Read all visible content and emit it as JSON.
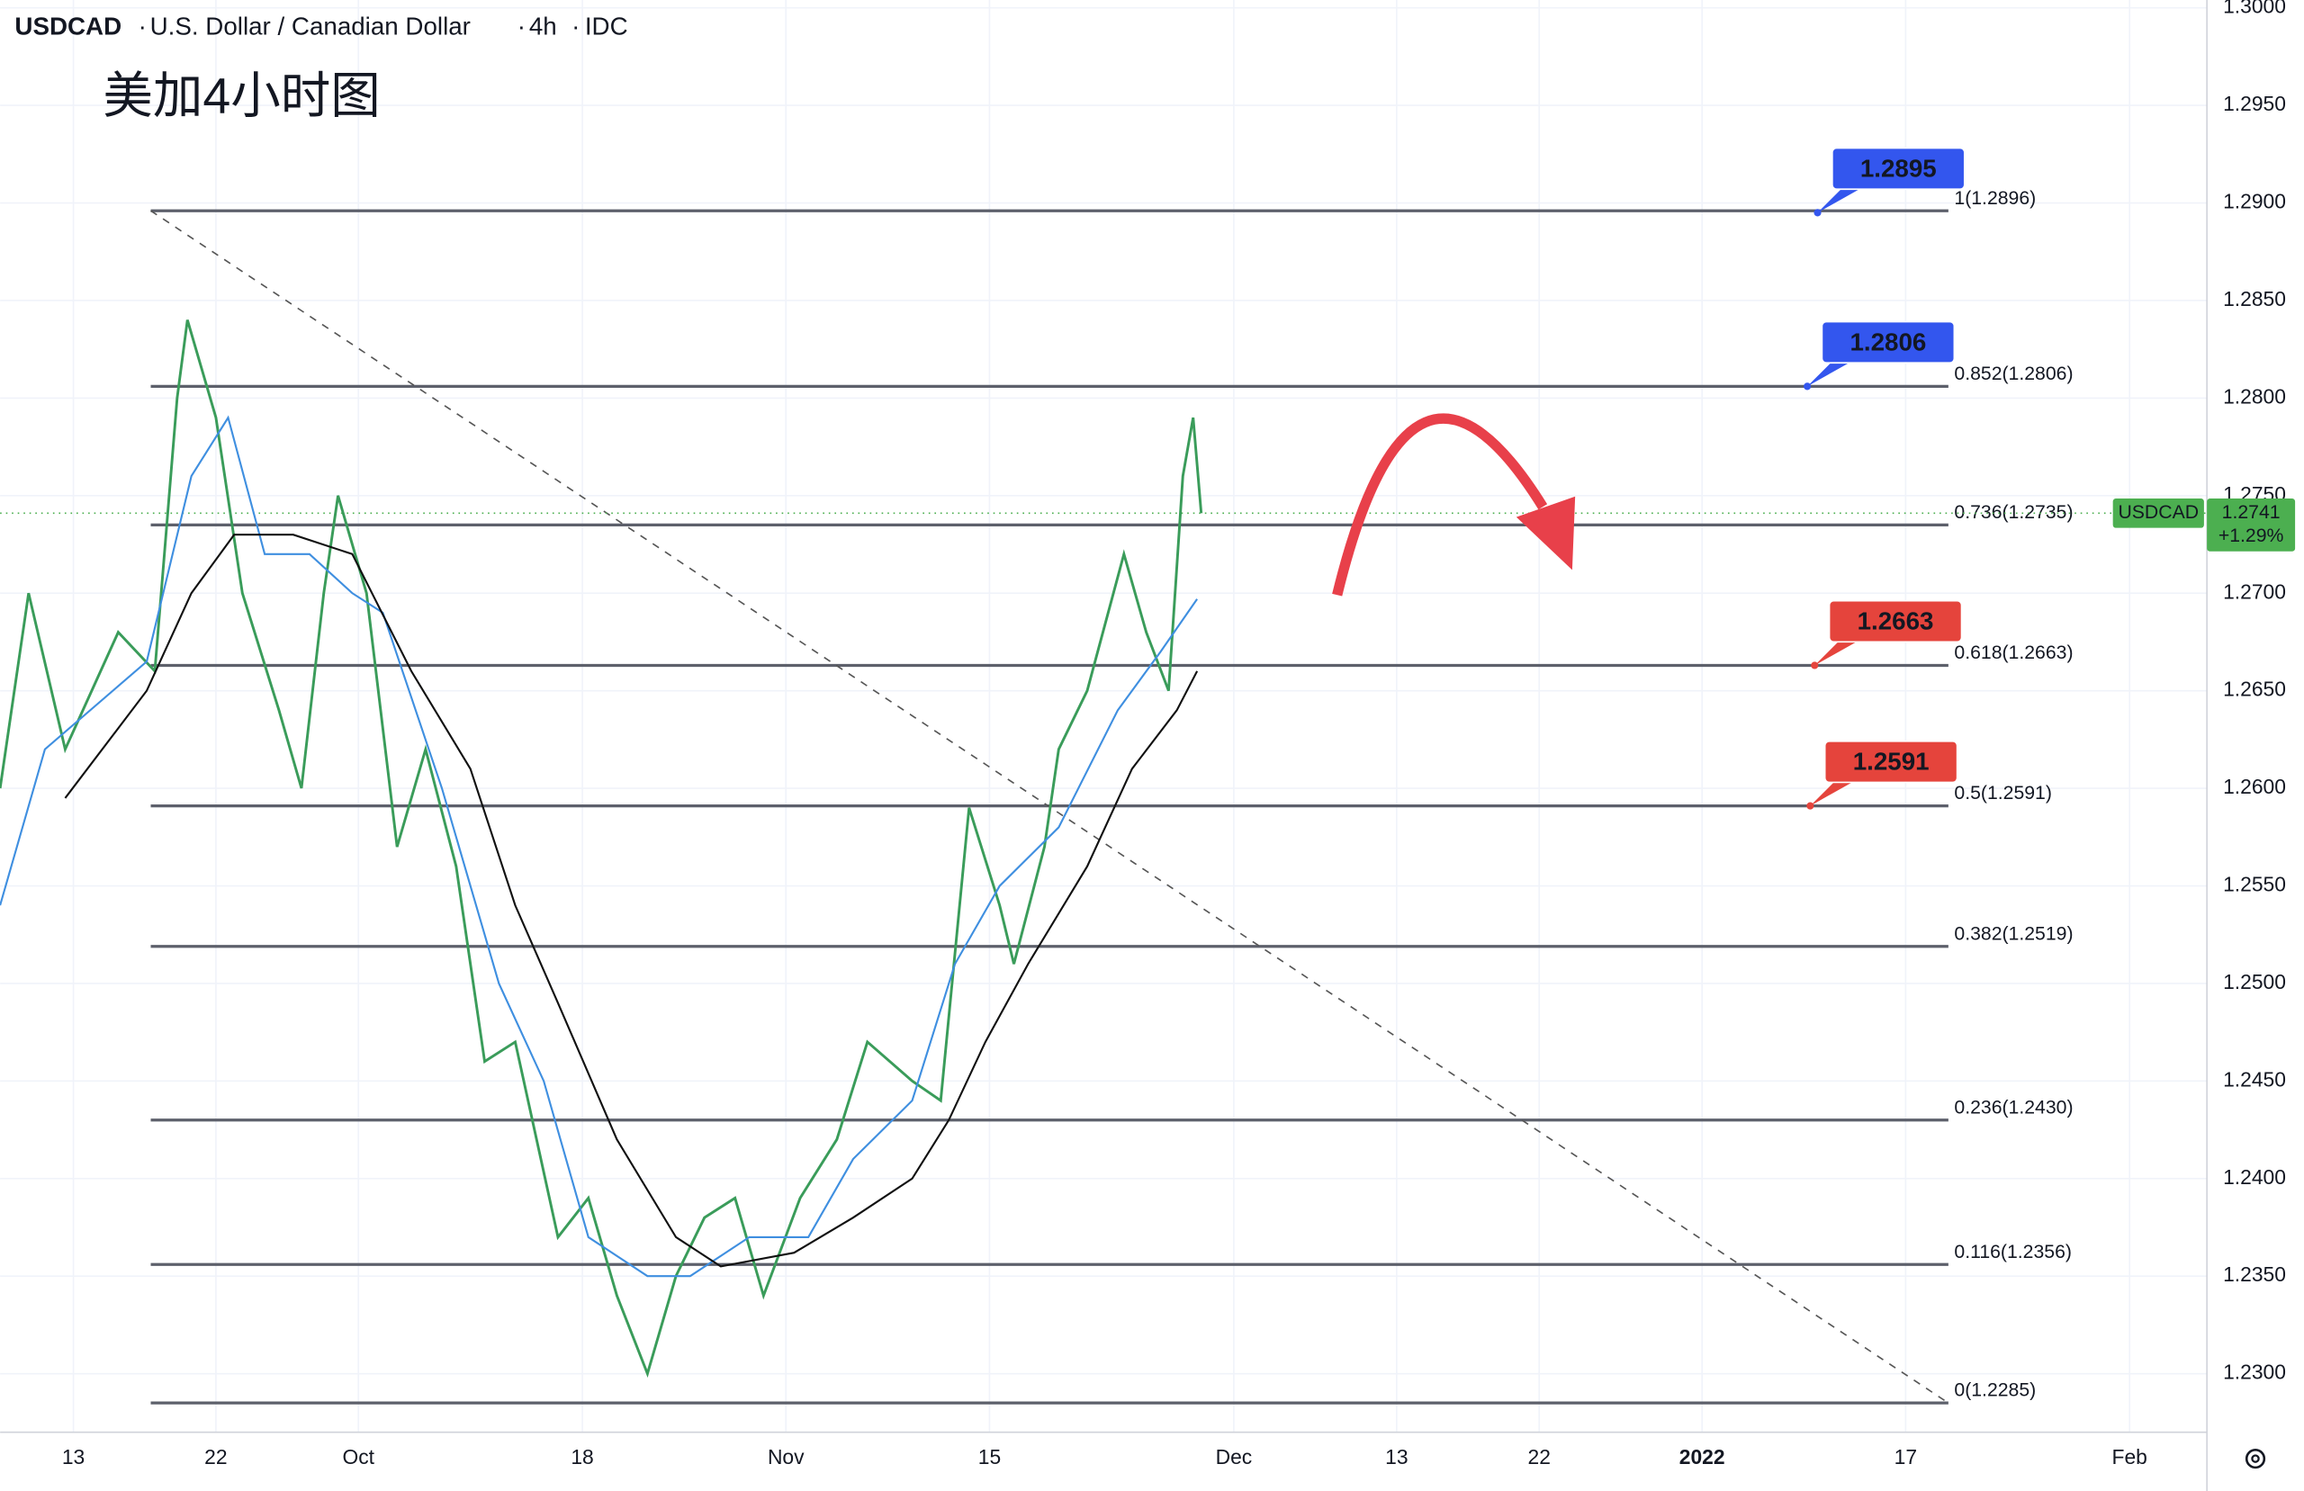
{
  "chart_data": {
    "type": "line",
    "header": {
      "symbol": "USDCAD",
      "name": "U.S. Dollar / Canadian Dollar",
      "interval": "4h",
      "source": "IDC"
    },
    "title": "美加4小时图",
    "xlim": [
      -3.6,
      104.8
    ],
    "xticks": [
      {
        "value": 0,
        "label": "13"
      },
      {
        "value": 7,
        "label": "22"
      },
      {
        "value": 14,
        "label": "Oct"
      },
      {
        "value": 25,
        "label": "18"
      },
      {
        "value": 35,
        "label": "Nov"
      },
      {
        "value": 45,
        "label": "15"
      },
      {
        "value": 57,
        "label": "Dec"
      },
      {
        "value": 65,
        "label": "13"
      },
      {
        "value": 72,
        "label": "22"
      },
      {
        "value": 80,
        "label": "2022"
      },
      {
        "value": 90,
        "label": "17"
      },
      {
        "value": 101,
        "label": "Feb"
      }
    ],
    "ylim": [
      1.227,
      1.3004
    ],
    "yticks": [
      {
        "value": 1.23,
        "label": "1.2300"
      },
      {
        "value": 1.235,
        "label": "1.2350"
      },
      {
        "value": 1.24,
        "label": "1.2400"
      },
      {
        "value": 1.245,
        "label": "1.2450"
      },
      {
        "value": 1.25,
        "label": "1.2500"
      },
      {
        "value": 1.255,
        "label": "1.2550"
      },
      {
        "value": 1.26,
        "label": "1.2600"
      },
      {
        "value": 1.265,
        "label": "1.2650"
      },
      {
        "value": 1.27,
        "label": "1.2700"
      },
      {
        "value": 1.275,
        "label": "1.2750"
      },
      {
        "value": 1.28,
        "label": "1.2800"
      },
      {
        "value": 1.285,
        "label": "1.2850"
      },
      {
        "value": 1.29,
        "label": "1.2900"
      },
      {
        "value": 1.295,
        "label": "1.2950"
      },
      {
        "value": 1.3,
        "label": "1.3000"
      }
    ],
    "grid": true,
    "series": [
      {
        "name": "USDCAD",
        "color": "#3a9c5a",
        "x": [
          -3.6,
          -2.2,
          -0.4,
          2.2,
          4.0,
          5.1,
          5.6,
          7.0,
          8.3,
          10.1,
          11.2,
          12.3,
          13.0,
          14.4,
          15.9,
          17.3,
          18.8,
          20.2,
          21.7,
          23.8,
          25.3,
          26.7,
          28.2,
          29.6,
          31.0,
          32.5,
          33.9,
          35.7,
          37.5,
          39.0,
          41.2,
          42.6,
          44.0,
          45.5,
          46.2,
          47.7,
          48.4,
          49.8,
          51.6,
          52.7,
          53.8,
          54.5,
          55.0,
          55.4
        ],
        "values": [
          1.26,
          1.27,
          1.262,
          1.268,
          1.266,
          1.28,
          1.284,
          1.279,
          1.27,
          1.264,
          1.26,
          1.27,
          1.275,
          1.27,
          1.257,
          1.262,
          1.256,
          1.246,
          1.247,
          1.237,
          1.239,
          1.234,
          1.23,
          1.235,
          1.238,
          1.239,
          1.234,
          1.239,
          1.242,
          1.247,
          1.245,
          1.244,
          1.259,
          1.254,
          1.251,
          1.257,
          1.262,
          1.265,
          1.272,
          1.268,
          1.265,
          1.276,
          1.279,
          1.2741
        ]
      },
      {
        "name": "MA fast",
        "color": "#3f8fe0",
        "x": [
          -3.6,
          -1.4,
          3.6,
          5.8,
          7.6,
          9.4,
          11.6,
          13.7,
          15.2,
          18.1,
          20.9,
          23.1,
          25.3,
          28.2,
          30.3,
          33.2,
          36.1,
          38.3,
          41.2,
          43.3,
          45.5,
          48.4,
          51.3,
          53.4,
          55.2
        ],
        "values": [
          1.254,
          1.262,
          1.2665,
          1.276,
          1.279,
          1.272,
          1.272,
          1.27,
          1.269,
          1.26,
          1.25,
          1.245,
          1.237,
          1.235,
          1.235,
          1.237,
          1.237,
          1.241,
          1.244,
          1.251,
          1.255,
          1.258,
          1.264,
          1.267,
          1.2697
        ]
      },
      {
        "name": "MA slow",
        "color": "#111111",
        "x": [
          -0.4,
          3.6,
          5.8,
          7.9,
          10.8,
          13.7,
          16.6,
          19.5,
          21.7,
          23.8,
          26.7,
          29.6,
          31.8,
          35.4,
          38.3,
          41.2,
          43.0,
          44.8,
          46.9,
          49.8,
          52.0,
          54.2,
          55.2
        ],
        "values": [
          1.2595,
          1.265,
          1.27,
          1.273,
          1.273,
          1.272,
          1.266,
          1.261,
          1.254,
          1.249,
          1.242,
          1.237,
          1.2355,
          1.2362,
          1.238,
          1.24,
          1.243,
          1.247,
          1.251,
          1.256,
          1.261,
          1.264,
          1.266
        ]
      }
    ],
    "fib": {
      "x": [
        3.8,
        92.1
      ],
      "levels": [
        {
          "label": "1(1.2896)",
          "value": 1.2896
        },
        {
          "label": "0.852(1.2806)",
          "value": 1.2806
        },
        {
          "label": "0.736(1.2735)",
          "value": 1.2735
        },
        {
          "label": "0.618(1.2663)",
          "value": 1.2663
        },
        {
          "label": "0.5(1.2591)",
          "value": 1.2591
        },
        {
          "label": "0.382(1.2519)",
          "value": 1.2519
        },
        {
          "label": "0.236(1.2430)",
          "value": 1.243
        },
        {
          "label": "0.116(1.2356)",
          "value": 1.2356
        },
        {
          "label": "0(1.2285)",
          "value": 1.2285
        }
      ]
    },
    "trendline": {
      "x": [
        3.8,
        92.1
      ],
      "y": [
        1.2896,
        1.2285
      ]
    },
    "callouts": [
      {
        "value": 1.2895,
        "color": "#3356ee"
      },
      {
        "value": 1.2806,
        "color": "#3356ee"
      },
      {
        "value": 1.2663,
        "color": "#e5443c"
      },
      {
        "value": 1.2591,
        "color": "#e5443c"
      }
    ],
    "last_price": {
      "symbol": "USDCAD",
      "value": 1.2741,
      "change": "+1.29%",
      "color": "#4caf50"
    }
  }
}
